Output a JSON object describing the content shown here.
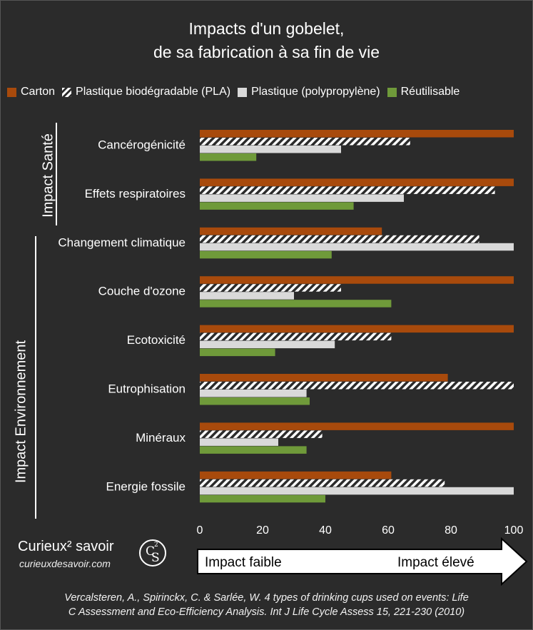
{
  "title_line1": "Impacts  d'un gobelet,",
  "title_line2": "de sa fabrication à sa fin de vie",
  "legend": [
    {
      "label": "Carton",
      "color": "#a84a0c",
      "pattern": "solid"
    },
    {
      "label": "Plastique biodégradable (PLA)",
      "color": "#ffffff",
      "pattern": "hatched"
    },
    {
      "label": "Plastique (polypropylène)",
      "color": "#d9d9d9",
      "pattern": "solid"
    },
    {
      "label": "Réutilisable",
      "color": "#6f9a3a",
      "pattern": "solid"
    }
  ],
  "groups": [
    {
      "label": "Impact Santé"
    },
    {
      "label": "Impact Environnement"
    }
  ],
  "chart_data": {
    "type": "bar",
    "orientation": "horizontal",
    "categories": [
      "Cancérogénicité",
      "Effets respiratoires",
      "Changement climatique",
      "Couche d'ozone",
      "Ecotoxicité",
      "Eutrophisation",
      "Minéraux",
      "Energie fossile"
    ],
    "series": [
      {
        "name": "Carton",
        "values": [
          100,
          100,
          58,
          100,
          100,
          79,
          100,
          61
        ]
      },
      {
        "name": "Plastique biodégradable (PLA)",
        "values": [
          67,
          94,
          89,
          45,
          61,
          100,
          39,
          78
        ]
      },
      {
        "name": "Plastique (polypropylène)",
        "values": [
          45,
          65,
          100,
          30,
          43,
          34,
          25,
          100
        ]
      },
      {
        "name": "Réutilisable",
        "values": [
          18,
          49,
          42,
          61,
          24,
          35,
          34,
          40
        ]
      }
    ],
    "xticks": [
      "0",
      "20",
      "40",
      "60",
      "80",
      "100"
    ],
    "xlim": [
      0,
      100
    ],
    "grid": false,
    "legend_position": "top"
  },
  "scale": {
    "low": "Impact faible",
    "high": "Impact élevé"
  },
  "brand": {
    "name": "Curieux² savoir",
    "url": "curieuxdesavoir.com",
    "logo_c": "C",
    "logo_s": "S",
    "logo_sup": "2"
  },
  "citation": {
    "line1": "Vercalsteren, A., Spirinckx, C. & Sarlée, W. 4 types of drinking cups used on events: Life",
    "line2": "C Assessment and Eco-Efficiency Analysis. Int J Life Cycle Assess 15, 221-230 (2010)"
  }
}
